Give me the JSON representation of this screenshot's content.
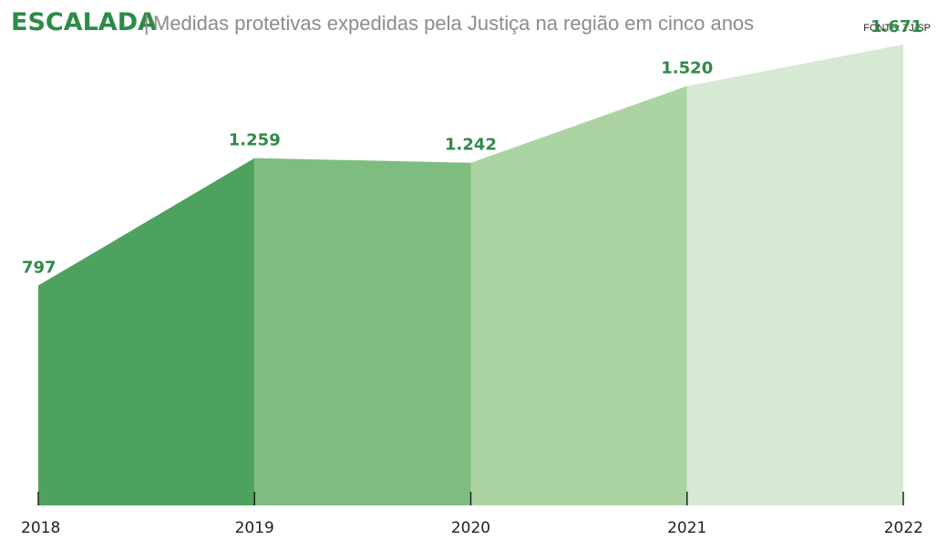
{
  "header": {
    "title": "ESCALADA",
    "separator": "|",
    "subtitle": "Medidas protetivas expedidas pela Justiça na região em cinco anos",
    "source": "FONTE: TJ-SP"
  },
  "colors": {
    "title": "#2e8b47",
    "subtitle": "#8c8c8c",
    "value_label": "#2e8b47",
    "axis": "#222222",
    "segments": [
      "#4ea25f",
      "#7fbc80",
      "#acd3a4",
      "#d6e9d2"
    ]
  },
  "chart_data": {
    "type": "area",
    "title": "ESCALADA",
    "subtitle": "Medidas protetivas expedidas pela Justiça na região em cinco anos",
    "x": [
      "2018",
      "2019",
      "2020",
      "2021",
      "2022"
    ],
    "values": [
      797,
      1259,
      1242,
      1520,
      1671
    ],
    "value_labels": [
      "797",
      "1.259",
      "1.242",
      "1.520",
      "1.671"
    ],
    "ylim": [
      0,
      1700
    ],
    "grid": false,
    "legend": "none"
  }
}
